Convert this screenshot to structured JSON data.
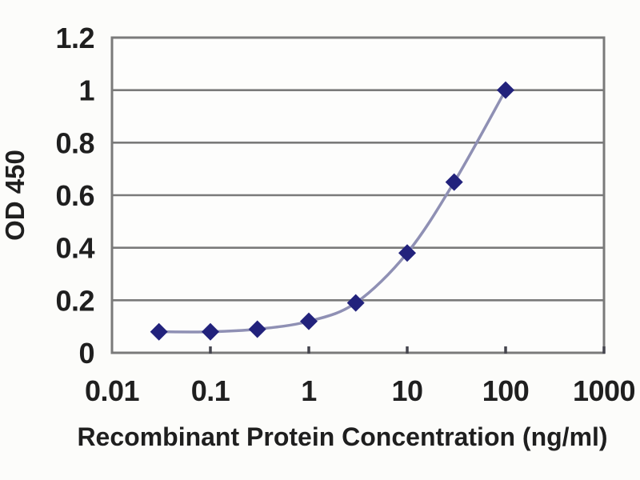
{
  "page": {
    "background": "#fcfcfa"
  },
  "chart_data": {
    "type": "line",
    "title": "",
    "xlabel": "Recombinant Protein Concentration (ng/ml)",
    "ylabel": "OD 450",
    "x_scale": "log",
    "xlim": [
      0.01,
      1000
    ],
    "ylim": [
      0,
      1.2
    ],
    "x_tick_values": [
      0.01,
      0.1,
      1,
      10,
      100,
      1000
    ],
    "x_tick_labels": [
      "0.01",
      "0.1",
      "1",
      "10",
      "100",
      "1000"
    ],
    "y_tick_values": [
      0,
      0.2,
      0.4,
      0.6,
      0.8,
      1,
      1.2
    ],
    "y_tick_labels": [
      "0",
      "0.2",
      "0.4",
      "0.6",
      "0.8",
      "1",
      "1.2"
    ],
    "grid": "horizontal",
    "legend_position": "none",
    "marker_shape": "diamond",
    "series": [
      {
        "name": "OD 450",
        "points": [
          {
            "x": 0.03,
            "y": 0.08
          },
          {
            "x": 0.1,
            "y": 0.08
          },
          {
            "x": 0.3,
            "y": 0.09
          },
          {
            "x": 1,
            "y": 0.12
          },
          {
            "x": 3,
            "y": 0.19
          },
          {
            "x": 10,
            "y": 0.38
          },
          {
            "x": 30,
            "y": 0.65
          },
          {
            "x": 100,
            "y": 1.0
          }
        ]
      }
    ],
    "colors": {
      "line": "#8f90b4",
      "marker": "#22227c",
      "grid": "#7a7a7a",
      "frame": "#7a7a7a",
      "tick": "#45454e",
      "text": "#1f1f1f",
      "plot_background": "#fdfdfc"
    }
  }
}
